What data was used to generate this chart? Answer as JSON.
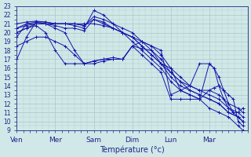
{
  "xlabel": "Température (°c)",
  "xlabels": [
    "Ven",
    "Mer",
    "Sam",
    "Dim",
    "Lun",
    "Mar"
  ],
  "x_tick_positions": [
    0,
    8,
    16,
    24,
    32,
    40
  ],
  "n_points": 48,
  "ylim": [
    9,
    23
  ],
  "xlim": [
    0,
    48
  ],
  "yticks": [
    9,
    10,
    11,
    12,
    13,
    14,
    15,
    16,
    17,
    18,
    19,
    20,
    21,
    22,
    23
  ],
  "bg_color": "#d0e8e8",
  "grid_color": "#b0cccc",
  "line_color": "#1515aa",
  "lines": [
    {
      "x": [
        0,
        2,
        4,
        6,
        8,
        10,
        12,
        14,
        16,
        18,
        20,
        22,
        24,
        26,
        28,
        30,
        32,
        34,
        36,
        38,
        40,
        42,
        44,
        46,
        47
      ],
      "y": [
        20.0,
        20.5,
        21.0,
        21.0,
        21.0,
        21.0,
        20.8,
        20.5,
        22.5,
        22.0,
        21.0,
        20.0,
        19.0,
        18.0,
        17.0,
        16.0,
        14.5,
        13.5,
        13.0,
        12.5,
        11.5,
        11.0,
        10.5,
        9.5,
        9.0
      ]
    },
    {
      "x": [
        0,
        2,
        4,
        6,
        8,
        10,
        12,
        14,
        16,
        18,
        20,
        22,
        24,
        26,
        28,
        30,
        32,
        34,
        36,
        38,
        40,
        42,
        44,
        46,
        47
      ],
      "y": [
        21.0,
        21.2,
        21.3,
        21.2,
        21.0,
        21.0,
        21.0,
        20.8,
        21.5,
        21.2,
        20.5,
        20.0,
        19.5,
        18.5,
        17.5,
        16.5,
        15.0,
        14.0,
        13.5,
        13.0,
        12.5,
        12.0,
        11.0,
        10.5,
        10.0
      ]
    },
    {
      "x": [
        0,
        2,
        4,
        6,
        8,
        10,
        12,
        14,
        16,
        18,
        20,
        22,
        24,
        26,
        28,
        30,
        32,
        34,
        36,
        38,
        40,
        42,
        44,
        46,
        47
      ],
      "y": [
        20.5,
        21.0,
        21.0,
        21.0,
        21.0,
        21.0,
        21.0,
        20.8,
        21.8,
        21.5,
        21.0,
        20.5,
        20.0,
        19.0,
        18.0,
        17.0,
        15.5,
        14.5,
        14.0,
        13.5,
        13.0,
        12.5,
        11.5,
        11.0,
        10.5
      ]
    },
    {
      "x": [
        0,
        2,
        4,
        6,
        8,
        10,
        12,
        14,
        16,
        18,
        20,
        22,
        24,
        26,
        28,
        30,
        32,
        34,
        36,
        38,
        40,
        42,
        44,
        46,
        47
      ],
      "y": [
        19.5,
        21.0,
        21.2,
        21.2,
        21.0,
        21.0,
        21.0,
        21.0,
        21.0,
        20.8,
        20.5,
        20.0,
        19.5,
        19.0,
        18.5,
        17.5,
        16.0,
        15.0,
        14.0,
        13.5,
        13.5,
        13.0,
        12.0,
        11.5,
        11.0
      ]
    },
    {
      "x": [
        0,
        2,
        4,
        6,
        8,
        10,
        12,
        14,
        16,
        18,
        20,
        22,
        24,
        26,
        28,
        30,
        32,
        34,
        36,
        38,
        40,
        42,
        44,
        46,
        47
      ],
      "y": [
        20.5,
        20.8,
        21.0,
        21.0,
        20.8,
        20.5,
        20.5,
        20.2,
        21.5,
        21.0,
        20.5,
        20.0,
        19.5,
        18.5,
        17.5,
        16.5,
        15.5,
        14.5,
        13.5,
        13.0,
        12.5,
        12.0,
        11.0,
        10.5,
        10.0
      ]
    },
    {
      "x": [
        0,
        2,
        4,
        6,
        8,
        10,
        12,
        14,
        16,
        18,
        20,
        22,
        24,
        26,
        28,
        30,
        32,
        34,
        36,
        38,
        40,
        41,
        42,
        43,
        44,
        45,
        46,
        47
      ],
      "y": [
        18.5,
        19.0,
        19.5,
        19.5,
        19.0,
        18.5,
        17.5,
        16.5,
        16.5,
        16.8,
        17.0,
        17.0,
        18.5,
        19.0,
        18.5,
        18.0,
        13.0,
        13.5,
        14.0,
        16.5,
        16.5,
        16.0,
        15.0,
        13.5,
        12.0,
        11.0,
        11.0,
        11.5
      ]
    },
    {
      "x": [
        0,
        2,
        4,
        6,
        8,
        10,
        12,
        14,
        16,
        18,
        20,
        22,
        24,
        26,
        28,
        30,
        32,
        34,
        36,
        38,
        40,
        41,
        42,
        43,
        44,
        45,
        46,
        47
      ],
      "y": [
        17.0,
        19.5,
        21.2,
        21.0,
        20.5,
        20.0,
        18.0,
        16.5,
        16.8,
        17.0,
        17.0,
        17.0,
        18.5,
        17.5,
        16.5,
        15.5,
        12.5,
        12.5,
        12.5,
        12.5,
        13.5,
        13.8,
        14.0,
        13.5,
        13.0,
        12.5,
        10.0,
        9.5
      ]
    },
    {
      "x": [
        0,
        2,
        4,
        6,
        8,
        10,
        12,
        14,
        16,
        18,
        20,
        22,
        24,
        26,
        28,
        30,
        32,
        34,
        36,
        38,
        40,
        41,
        42,
        43,
        44,
        45,
        46,
        47
      ],
      "y": [
        20.0,
        20.5,
        20.8,
        20.0,
        18.0,
        16.5,
        16.5,
        16.5,
        16.8,
        17.0,
        17.2,
        17.0,
        18.5,
        18.2,
        18.0,
        16.5,
        16.0,
        13.5,
        13.0,
        12.5,
        16.5,
        16.0,
        14.0,
        12.5,
        11.5,
        11.0,
        10.5,
        10.0
      ]
    }
  ]
}
